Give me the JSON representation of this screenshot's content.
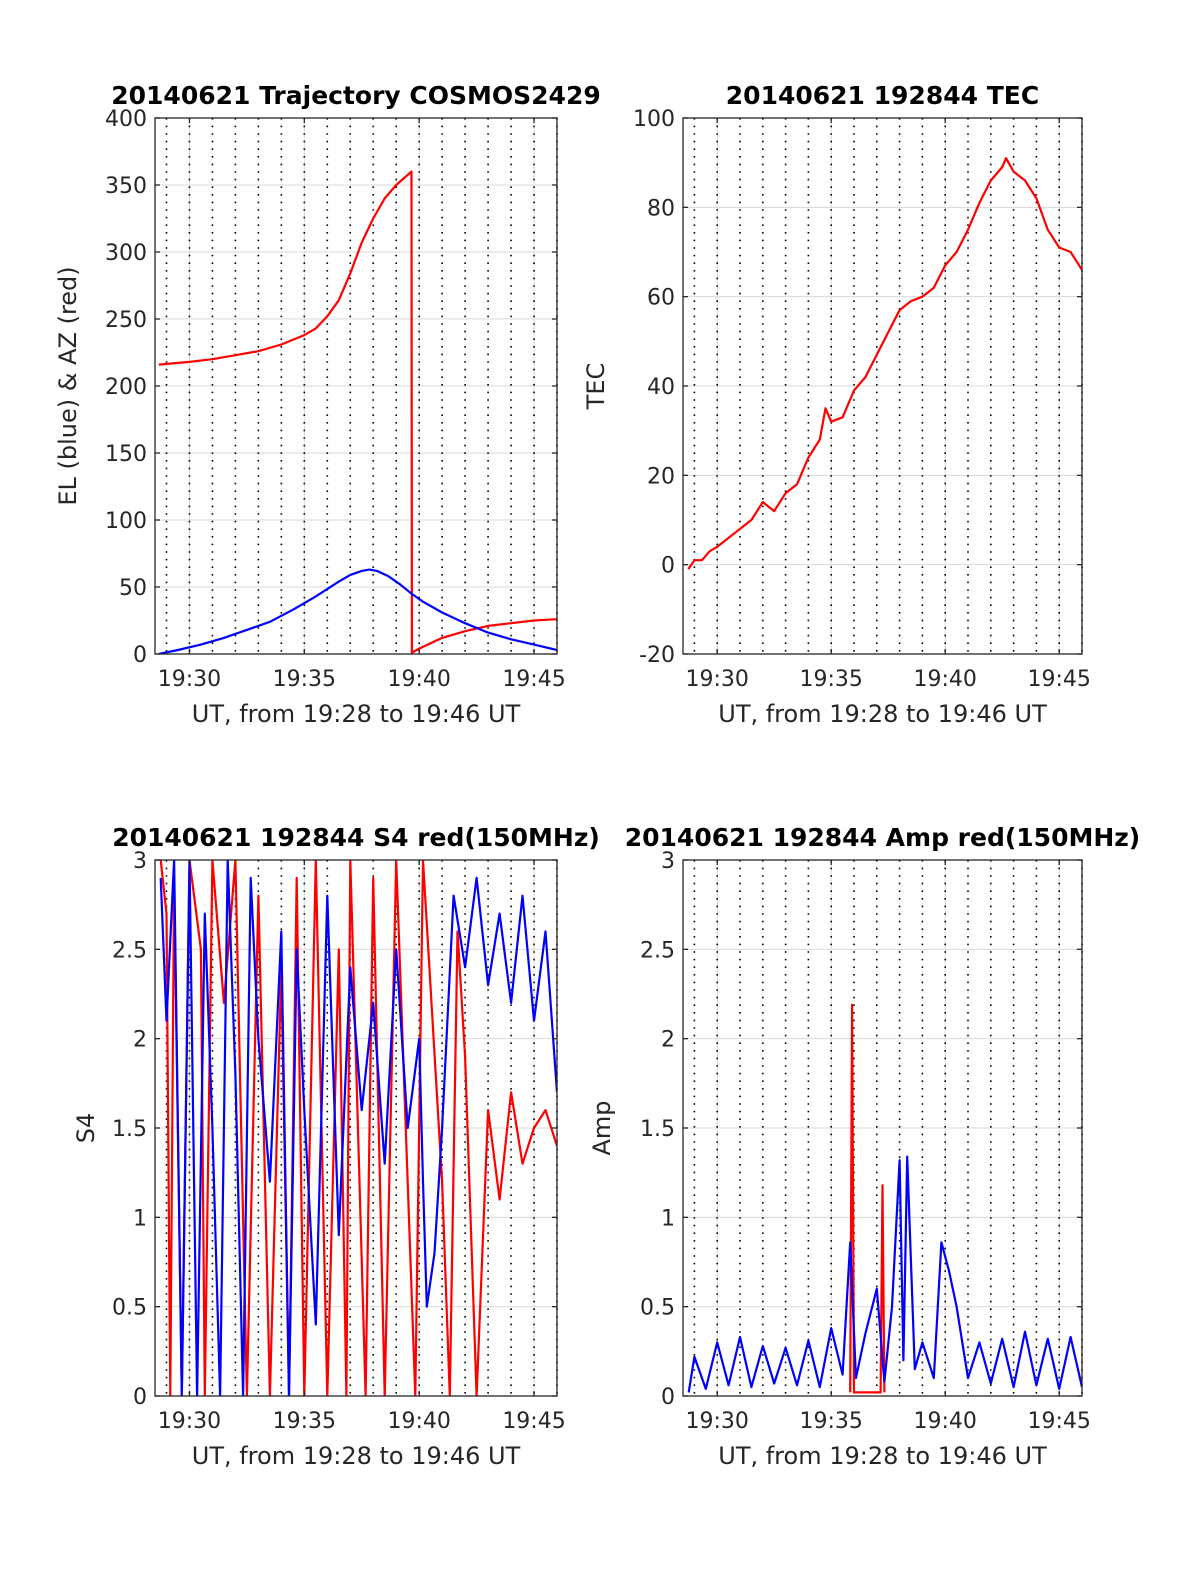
{
  "colors": {
    "red": "#ff0000",
    "blue": "#0000ff",
    "axis": "#262626",
    "grid": "#d9d9d9"
  },
  "chart_data": [
    {
      "id": "trajectory",
      "type": "line",
      "title": "20140621 Trajectory COSMOS2429",
      "xlabel": "UT, from 19:28 to 19:46 UT",
      "ylabel": "EL (blue) & AZ (red)",
      "xlim": [
        "19:28:30",
        "19:46:00"
      ],
      "ylim": [
        0,
        400
      ],
      "yticks": [
        0,
        50,
        100,
        150,
        200,
        250,
        300,
        350,
        400
      ],
      "xtick_labels": [
        "19:30",
        "19:35",
        "19:40",
        "19:45"
      ],
      "grid": true,
      "minor_vertical_dotted_gridlines": true,
      "series": [
        {
          "color": "red",
          "points": [
            [
              "19:28:40",
              216
            ],
            [
              "19:30:00",
              218
            ],
            [
              "19:31:00",
              220
            ],
            [
              "19:32:00",
              223
            ],
            [
              "19:33:00",
              226
            ],
            [
              "19:34:00",
              231
            ],
            [
              "19:35:00",
              238
            ],
            [
              "19:35:30",
              243
            ],
            [
              "19:36:00",
              252
            ],
            [
              "19:36:30",
              264
            ],
            [
              "19:37:00",
              284
            ],
            [
              "19:37:30",
              307
            ],
            [
              "19:38:00",
              325
            ],
            [
              "19:38:30",
              340
            ],
            [
              "19:39:00",
              350
            ],
            [
              "19:39:40",
              360
            ],
            [
              "19:39:41",
              1
            ],
            [
              "19:40:00",
              4
            ],
            [
              "19:41:00",
              12
            ],
            [
              "19:42:00",
              17
            ],
            [
              "19:43:00",
              21
            ],
            [
              "19:44:00",
              23
            ],
            [
              "19:45:00",
              25
            ],
            [
              "19:46:00",
              26
            ]
          ]
        },
        {
          "color": "blue",
          "points": [
            [
              "19:28:40",
              0
            ],
            [
              "19:29:30",
              3
            ],
            [
              "19:30:30",
              7
            ],
            [
              "19:31:30",
              12
            ],
            [
              "19:32:30",
              18
            ],
            [
              "19:33:30",
              24
            ],
            [
              "19:34:30",
              33
            ],
            [
              "19:35:30",
              43
            ],
            [
              "19:36:30",
              54
            ],
            [
              "19:37:00",
              59
            ],
            [
              "19:37:30",
              62
            ],
            [
              "19:37:50",
              63
            ],
            [
              "19:38:10",
              62
            ],
            [
              "19:38:40",
              58
            ],
            [
              "19:39:10",
              52
            ],
            [
              "19:39:40",
              45
            ],
            [
              "19:40:10",
              39
            ],
            [
              "19:41:00",
              31
            ],
            [
              "19:42:00",
              23
            ],
            [
              "19:43:00",
              16
            ],
            [
              "19:44:00",
              11
            ],
            [
              "19:45:00",
              7
            ],
            [
              "19:46:00",
              3
            ]
          ]
        }
      ]
    },
    {
      "id": "tec",
      "type": "line",
      "title": "20140621 192844 TEC",
      "xlabel": "UT, from 19:28 to 19:46 UT",
      "ylabel": "TEC",
      "xlim": [
        "19:28:30",
        "19:46:00"
      ],
      "ylim": [
        -20,
        100
      ],
      "yticks": [
        -20,
        0,
        20,
        40,
        60,
        80,
        100
      ],
      "xtick_labels": [
        "19:30",
        "19:35",
        "19:40",
        "19:45"
      ],
      "grid": true,
      "series": [
        {
          "color": "red",
          "points": [
            [
              "19:28:44",
              -1
            ],
            [
              "19:29:00",
              1
            ],
            [
              "19:29:20",
              1
            ],
            [
              "19:29:40",
              3
            ],
            [
              "19:30:00",
              4
            ],
            [
              "19:30:30",
              6
            ],
            [
              "19:31:00",
              8
            ],
            [
              "19:31:30",
              10
            ],
            [
              "19:32:00",
              14
            ],
            [
              "19:32:30",
              12
            ],
            [
              "19:33:00",
              16
            ],
            [
              "19:33:30",
              18
            ],
            [
              "19:34:00",
              24
            ],
            [
              "19:34:30",
              28
            ],
            [
              "19:34:45",
              35
            ],
            [
              "19:35:00",
              32
            ],
            [
              "19:35:30",
              33
            ],
            [
              "19:36:00",
              39
            ],
            [
              "19:36:30",
              42
            ],
            [
              "19:37:00",
              47
            ],
            [
              "19:37:30",
              52
            ],
            [
              "19:38:00",
              57
            ],
            [
              "19:38:30",
              59
            ],
            [
              "19:39:00",
              60
            ],
            [
              "19:39:30",
              62
            ],
            [
              "19:40:00",
              67
            ],
            [
              "19:40:30",
              70
            ],
            [
              "19:41:00",
              75
            ],
            [
              "19:41:30",
              81
            ],
            [
              "19:42:00",
              86
            ],
            [
              "19:42:30",
              89
            ],
            [
              "19:42:40",
              91
            ],
            [
              "19:43:00",
              88
            ],
            [
              "19:43:30",
              86
            ],
            [
              "19:44:00",
              82
            ],
            [
              "19:44:30",
              75
            ],
            [
              "19:45:00",
              71
            ],
            [
              "19:45:30",
              70
            ],
            [
              "19:46:00",
              66
            ]
          ]
        }
      ]
    },
    {
      "id": "s4",
      "type": "line",
      "title": "20140621 192844 S4 red(150MHz)",
      "xlabel": "UT, from 19:28 to 19:46 UT",
      "ylabel": "S4",
      "xlim": [
        "19:28:30",
        "19:46:00"
      ],
      "ylim": [
        0,
        3
      ],
      "yticks": [
        0,
        0.5,
        1,
        1.5,
        2,
        2.5,
        3
      ],
      "ytick_labels": [
        "0",
        "0.5",
        "1",
        "1.5",
        "2",
        "2.5",
        "3"
      ],
      "xtick_labels": [
        "19:30",
        "19:35",
        "19:40",
        "19:45"
      ],
      "grid": true,
      "series": [
        {
          "color": "red",
          "points": [
            [
              "19:28:45",
              3
            ],
            [
              "19:29:00",
              2.7
            ],
            [
              "19:29:10",
              0
            ],
            [
              "19:29:20",
              2.9
            ],
            [
              "19:29:40",
              0
            ],
            [
              "19:30:00",
              3
            ],
            [
              "19:30:30",
              2.5
            ],
            [
              "19:30:40",
              0
            ],
            [
              "19:31:00",
              3
            ],
            [
              "19:31:30",
              2.2
            ],
            [
              "19:32:00",
              3
            ],
            [
              "19:32:30",
              0
            ],
            [
              "19:33:00",
              2.8
            ],
            [
              "19:33:30",
              0
            ],
            [
              "19:34:00",
              2.4
            ],
            [
              "19:34:20",
              0
            ],
            [
              "19:34:40",
              2.9
            ],
            [
              "19:35:00",
              0
            ],
            [
              "19:35:30",
              3
            ],
            [
              "19:36:00",
              0
            ],
            [
              "19:36:30",
              2.5
            ],
            [
              "19:36:50",
              0
            ],
            [
              "19:37:00",
              3
            ],
            [
              "19:37:40",
              0
            ],
            [
              "19:38:00",
              2.9
            ],
            [
              "19:38:30",
              0
            ],
            [
              "19:39:00",
              3
            ],
            [
              "19:39:50",
              0
            ],
            [
              "19:40:10",
              3
            ],
            [
              "19:41:00",
              1.2
            ],
            [
              "19:41:20",
              0
            ],
            [
              "19:41:40",
              2.6
            ],
            [
              "19:42:00",
              1.9
            ],
            [
              "19:42:30",
              0
            ],
            [
              "19:43:00",
              1.6
            ],
            [
              "19:43:30",
              1.1
            ],
            [
              "19:44:00",
              1.7
            ],
            [
              "19:44:30",
              1.3
            ],
            [
              "19:45:00",
              1.5
            ],
            [
              "19:45:30",
              1.6
            ],
            [
              "19:46:00",
              1.4
            ]
          ]
        },
        {
          "color": "blue",
          "points": [
            [
              "19:28:45",
              2.9
            ],
            [
              "19:29:00",
              2.1
            ],
            [
              "19:29:20",
              3
            ],
            [
              "19:29:40",
              0
            ],
            [
              "19:30:00",
              3
            ],
            [
              "19:30:20",
              0
            ],
            [
              "19:30:40",
              2.7
            ],
            [
              "19:31:00",
              1.5
            ],
            [
              "19:31:20",
              0
            ],
            [
              "19:31:40",
              3
            ],
            [
              "19:32:00",
              1.8
            ],
            [
              "19:32:20",
              0
            ],
            [
              "19:32:40",
              2.9
            ],
            [
              "19:33:00",
              2.0
            ],
            [
              "19:33:30",
              1.2
            ],
            [
              "19:34:00",
              2.6
            ],
            [
              "19:34:20",
              0
            ],
            [
              "19:34:40",
              2.5
            ],
            [
              "19:35:00",
              1.6
            ],
            [
              "19:35:30",
              0.4
            ],
            [
              "19:36:00",
              2.8
            ],
            [
              "19:36:30",
              0.9
            ],
            [
              "19:37:00",
              2.4
            ],
            [
              "19:37:30",
              1.6
            ],
            [
              "19:38:00",
              2.2
            ],
            [
              "19:38:30",
              1.3
            ],
            [
              "19:39:00",
              2.5
            ],
            [
              "19:39:30",
              1.5
            ],
            [
              "19:40:00",
              2.0
            ],
            [
              "19:40:10",
              1.2
            ],
            [
              "19:40:20",
              0.5
            ],
            [
              "19:40:40",
              0.8
            ],
            [
              "19:41:00",
              1.5
            ],
            [
              "19:41:30",
              2.8
            ],
            [
              "19:42:00",
              2.4
            ],
            [
              "19:42:30",
              2.9
            ],
            [
              "19:43:00",
              2.3
            ],
            [
              "19:43:30",
              2.7
            ],
            [
              "19:44:00",
              2.2
            ],
            [
              "19:44:30",
              2.8
            ],
            [
              "19:45:00",
              2.1
            ],
            [
              "19:45:30",
              2.6
            ],
            [
              "19:46:00",
              1.7
            ]
          ]
        }
      ]
    },
    {
      "id": "amp",
      "type": "line",
      "title": "20140621 192844 Amp red(150MHz)",
      "xlabel": "UT, from 19:28 to 19:46 UT",
      "ylabel": "Amp",
      "xlim": [
        "19:28:30",
        "19:46:00"
      ],
      "ylim": [
        0,
        3
      ],
      "yticks": [
        0,
        0.5,
        1,
        1.5,
        2,
        2.5,
        3
      ],
      "ytick_labels": [
        "0",
        "0.5",
        "1",
        "1.5",
        "2",
        "2.5",
        "3"
      ],
      "xtick_labels": [
        "19:30",
        "19:35",
        "19:40",
        "19:45"
      ],
      "grid": true,
      "series": [
        {
          "color": "red",
          "points": [
            [
              "19:35:50",
              0.02
            ],
            [
              "19:35:55",
              2.19
            ],
            [
              "19:36:00",
              0.02
            ],
            [
              "19:37:10",
              0.02
            ],
            [
              "19:37:15",
              1.18
            ],
            [
              "19:37:20",
              0.02
            ]
          ]
        },
        {
          "color": "blue",
          "points": [
            [
              "19:28:45",
              0.02
            ],
            [
              "19:29:00",
              0.22
            ],
            [
              "19:29:30",
              0.04
            ],
            [
              "19:30:00",
              0.3
            ],
            [
              "19:30:30",
              0.06
            ],
            [
              "19:31:00",
              0.33
            ],
            [
              "19:31:30",
              0.05
            ],
            [
              "19:32:00",
              0.28
            ],
            [
              "19:32:30",
              0.07
            ],
            [
              "19:33:00",
              0.27
            ],
            [
              "19:33:30",
              0.06
            ],
            [
              "19:34:00",
              0.31
            ],
            [
              "19:34:30",
              0.05
            ],
            [
              "19:35:00",
              0.38
            ],
            [
              "19:35:30",
              0.12
            ],
            [
              "19:35:50",
              0.86
            ],
            [
              "19:36:05",
              0.1
            ],
            [
              "19:36:30",
              0.35
            ],
            [
              "19:37:00",
              0.6
            ],
            [
              "19:37:20",
              0.08
            ],
            [
              "19:37:40",
              0.5
            ],
            [
              "19:38:00",
              1.32
            ],
            [
              "19:38:10",
              0.2
            ],
            [
              "19:38:20",
              1.34
            ],
            [
              "19:38:40",
              0.15
            ],
            [
              "19:39:00",
              0.3
            ],
            [
              "19:39:30",
              0.1
            ],
            [
              "19:39:50",
              0.86
            ],
            [
              "19:40:10",
              0.7
            ],
            [
              "19:40:30",
              0.5
            ],
            [
              "19:41:00",
              0.1
            ],
            [
              "19:41:30",
              0.3
            ],
            [
              "19:42:00",
              0.07
            ],
            [
              "19:42:30",
              0.32
            ],
            [
              "19:43:00",
              0.05
            ],
            [
              "19:43:30",
              0.36
            ],
            [
              "19:44:00",
              0.06
            ],
            [
              "19:44:30",
              0.32
            ],
            [
              "19:45:00",
              0.04
            ],
            [
              "19:45:30",
              0.33
            ],
            [
              "19:46:00",
              0.05
            ]
          ]
        }
      ]
    }
  ]
}
